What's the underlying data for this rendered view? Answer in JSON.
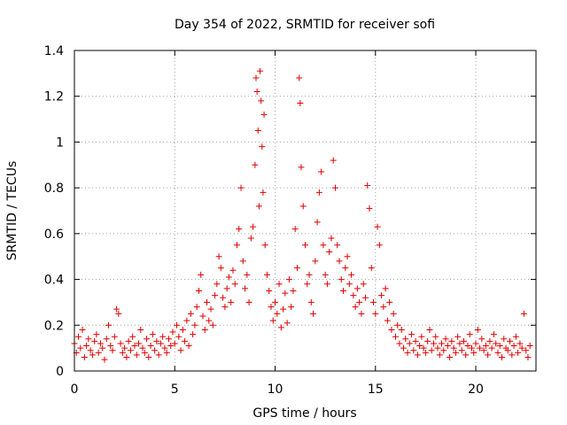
{
  "chart_data": {
    "type": "scatter",
    "title": "Day 354 of 2022, SRMTID for receiver sofi",
    "xlabel": "GPS time / hours",
    "ylabel": "SRMTID / TECUs",
    "xlim": [
      0,
      23
    ],
    "ylim": [
      0,
      1.4
    ],
    "xticks": [
      0,
      5,
      10,
      15,
      20
    ],
    "yticks": [
      0,
      0.2,
      0.4,
      0.6,
      0.8,
      1,
      1.2,
      1.4
    ],
    "ytick_labels": [
      "0",
      "0.2",
      "0.4",
      "0.6",
      "0.8",
      "1",
      "1.2",
      "1.4"
    ],
    "grid": true,
    "marker": "plus",
    "series": [
      {
        "name": "SRMTID",
        "color": "#e00000",
        "points": [
          [
            0.0,
            0.12
          ],
          [
            0.1,
            0.08
          ],
          [
            0.2,
            0.15
          ],
          [
            0.3,
            0.1
          ],
          [
            0.4,
            0.18
          ],
          [
            0.5,
            0.06
          ],
          [
            0.6,
            0.11
          ],
          [
            0.7,
            0.14
          ],
          [
            0.8,
            0.09
          ],
          [
            0.9,
            0.07
          ],
          [
            1.0,
            0.13
          ],
          [
            1.1,
            0.16
          ],
          [
            1.2,
            0.08
          ],
          [
            1.3,
            0.12
          ],
          [
            1.4,
            0.1
          ],
          [
            1.5,
            0.05
          ],
          [
            1.6,
            0.14
          ],
          [
            1.7,
            0.2
          ],
          [
            1.8,
            0.11
          ],
          [
            1.9,
            0.09
          ],
          [
            2.0,
            0.15
          ],
          [
            2.1,
            0.27
          ],
          [
            2.2,
            0.25
          ],
          [
            2.3,
            0.12
          ],
          [
            2.4,
            0.08
          ],
          [
            2.5,
            0.1
          ],
          [
            2.6,
            0.06
          ],
          [
            2.7,
            0.13
          ],
          [
            2.8,
            0.09
          ],
          [
            2.9,
            0.15
          ],
          [
            3.0,
            0.11
          ],
          [
            3.1,
            0.07
          ],
          [
            3.2,
            0.12
          ],
          [
            3.3,
            0.18
          ],
          [
            3.4,
            0.1
          ],
          [
            3.5,
            0.08
          ],
          [
            3.6,
            0.14
          ],
          [
            3.7,
            0.06
          ],
          [
            3.8,
            0.11
          ],
          [
            3.9,
            0.16
          ],
          [
            4.0,
            0.09
          ],
          [
            4.1,
            0.13
          ],
          [
            4.2,
            0.07
          ],
          [
            4.3,
            0.12
          ],
          [
            4.4,
            0.15
          ],
          [
            4.5,
            0.1
          ],
          [
            4.6,
            0.08
          ],
          [
            4.7,
            0.14
          ],
          [
            4.8,
            0.11
          ],
          [
            4.9,
            0.17
          ],
          [
            5.0,
            0.12
          ],
          [
            5.1,
            0.2
          ],
          [
            5.2,
            0.15
          ],
          [
            5.3,
            0.09
          ],
          [
            5.4,
            0.18
          ],
          [
            5.5,
            0.13
          ],
          [
            5.6,
            0.22
          ],
          [
            5.7,
            0.11
          ],
          [
            5.8,
            0.25
          ],
          [
            5.9,
            0.16
          ],
          [
            6.0,
            0.2
          ],
          [
            6.1,
            0.28
          ],
          [
            6.2,
            0.35
          ],
          [
            6.3,
            0.42
          ],
          [
            6.4,
            0.24
          ],
          [
            6.5,
            0.18
          ],
          [
            6.6,
            0.3
          ],
          [
            6.7,
            0.22
          ],
          [
            6.8,
            0.27
          ],
          [
            6.9,
            0.2
          ],
          [
            7.0,
            0.33
          ],
          [
            7.1,
            0.38
          ],
          [
            7.2,
            0.5
          ],
          [
            7.3,
            0.45
          ],
          [
            7.4,
            0.32
          ],
          [
            7.5,
            0.28
          ],
          [
            7.6,
            0.36
          ],
          [
            7.7,
            0.41
          ],
          [
            7.8,
            0.3
          ],
          [
            7.9,
            0.44
          ],
          [
            8.0,
            0.38
          ],
          [
            8.1,
            0.55
          ],
          [
            8.2,
            0.62
          ],
          [
            8.3,
            0.8
          ],
          [
            8.4,
            0.48
          ],
          [
            8.5,
            0.36
          ],
          [
            8.6,
            0.42
          ],
          [
            8.7,
            0.3
          ],
          [
            8.8,
            0.58
          ],
          [
            8.9,
            0.63
          ],
          [
            9.0,
            0.9
          ],
          [
            9.05,
            1.28
          ],
          [
            9.1,
            1.22
          ],
          [
            9.15,
            1.05
          ],
          [
            9.2,
            0.72
          ],
          [
            9.25,
            1.31
          ],
          [
            9.3,
            1.18
          ],
          [
            9.35,
            0.98
          ],
          [
            9.4,
            0.78
          ],
          [
            9.45,
            1.12
          ],
          [
            9.5,
            0.55
          ],
          [
            9.6,
            0.42
          ],
          [
            9.7,
            0.35
          ],
          [
            9.8,
            0.28
          ],
          [
            9.9,
            0.22
          ],
          [
            10.0,
            0.3
          ],
          [
            10.1,
            0.25
          ],
          [
            10.2,
            0.38
          ],
          [
            10.3,
            0.19
          ],
          [
            10.4,
            0.27
          ],
          [
            10.5,
            0.34
          ],
          [
            10.6,
            0.21
          ],
          [
            10.7,
            0.4
          ],
          [
            10.8,
            0.28
          ],
          [
            10.9,
            0.35
          ],
          [
            11.0,
            0.62
          ],
          [
            11.1,
            0.45
          ],
          [
            11.2,
            1.28
          ],
          [
            11.25,
            1.17
          ],
          [
            11.3,
            0.89
          ],
          [
            11.4,
            0.72
          ],
          [
            11.5,
            0.55
          ],
          [
            11.6,
            0.38
          ],
          [
            11.7,
            0.42
          ],
          [
            11.8,
            0.3
          ],
          [
            11.9,
            0.25
          ],
          [
            12.0,
            0.48
          ],
          [
            12.1,
            0.65
          ],
          [
            12.2,
            0.78
          ],
          [
            12.3,
            0.87
          ],
          [
            12.4,
            0.55
          ],
          [
            12.5,
            0.42
          ],
          [
            12.6,
            0.38
          ],
          [
            12.7,
            0.52
          ],
          [
            12.8,
            0.58
          ],
          [
            12.9,
            0.92
          ],
          [
            13.0,
            0.8
          ],
          [
            13.1,
            0.55
          ],
          [
            13.2,
            0.48
          ],
          [
            13.3,
            0.4
          ],
          [
            13.4,
            0.35
          ],
          [
            13.5,
            0.45
          ],
          [
            13.6,
            0.5
          ],
          [
            13.7,
            0.38
          ],
          [
            13.8,
            0.42
          ],
          [
            13.9,
            0.33
          ],
          [
            14.0,
            0.28
          ],
          [
            14.1,
            0.36
          ],
          [
            14.2,
            0.3
          ],
          [
            14.3,
            0.25
          ],
          [
            14.4,
            0.38
          ],
          [
            14.5,
            0.32
          ],
          [
            14.6,
            0.81
          ],
          [
            14.7,
            0.71
          ],
          [
            14.8,
            0.45
          ],
          [
            14.9,
            0.3
          ],
          [
            15.0,
            0.25
          ],
          [
            15.1,
            0.63
          ],
          [
            15.2,
            0.55
          ],
          [
            15.3,
            0.33
          ],
          [
            15.4,
            0.28
          ],
          [
            15.5,
            0.36
          ],
          [
            15.6,
            0.22
          ],
          [
            15.7,
            0.3
          ],
          [
            15.8,
            0.18
          ],
          [
            15.9,
            0.25
          ],
          [
            16.0,
            0.15
          ],
          [
            16.1,
            0.2
          ],
          [
            16.2,
            0.12
          ],
          [
            16.3,
            0.18
          ],
          [
            16.4,
            0.1
          ],
          [
            16.5,
            0.14
          ],
          [
            16.6,
            0.08
          ],
          [
            16.7,
            0.12
          ],
          [
            16.8,
            0.16
          ],
          [
            16.9,
            0.09
          ],
          [
            17.0,
            0.13
          ],
          [
            17.1,
            0.07
          ],
          [
            17.2,
            0.11
          ],
          [
            17.3,
            0.15
          ],
          [
            17.4,
            0.1
          ],
          [
            17.5,
            0.08
          ],
          [
            17.6,
            0.13
          ],
          [
            17.7,
            0.18
          ],
          [
            17.8,
            0.09
          ],
          [
            17.9,
            0.12
          ],
          [
            18.0,
            0.15
          ],
          [
            18.1,
            0.1
          ],
          [
            18.2,
            0.07
          ],
          [
            18.3,
            0.12
          ],
          [
            18.4,
            0.09
          ],
          [
            18.5,
            0.14
          ],
          [
            18.6,
            0.11
          ],
          [
            18.7,
            0.06
          ],
          [
            18.8,
            0.13
          ],
          [
            18.9,
            0.1
          ],
          [
            19.0,
            0.08
          ],
          [
            19.1,
            0.15
          ],
          [
            19.2,
            0.12
          ],
          [
            19.3,
            0.09
          ],
          [
            19.4,
            0.13
          ],
          [
            19.5,
            0.07
          ],
          [
            19.6,
            0.11
          ],
          [
            19.7,
            0.16
          ],
          [
            19.8,
            0.1
          ],
          [
            19.9,
            0.08
          ],
          [
            20.0,
            0.12
          ],
          [
            20.1,
            0.18
          ],
          [
            20.2,
            0.1
          ],
          [
            20.3,
            0.14
          ],
          [
            20.4,
            0.09
          ],
          [
            20.5,
            0.11
          ],
          [
            20.6,
            0.07
          ],
          [
            20.7,
            0.13
          ],
          [
            20.8,
            0.1
          ],
          [
            20.9,
            0.16
          ],
          [
            21.0,
            0.12
          ],
          [
            21.1,
            0.08
          ],
          [
            21.2,
            0.11
          ],
          [
            21.3,
            0.06
          ],
          [
            21.4,
            0.14
          ],
          [
            21.5,
            0.1
          ],
          [
            21.6,
            0.09
          ],
          [
            21.7,
            0.13
          ],
          [
            21.8,
            0.07
          ],
          [
            21.9,
            0.11
          ],
          [
            22.0,
            0.15
          ],
          [
            22.1,
            0.08
          ],
          [
            22.2,
            0.12
          ],
          [
            22.3,
            0.1
          ],
          [
            22.4,
            0.25
          ],
          [
            22.5,
            0.09
          ],
          [
            22.6,
            0.06
          ],
          [
            22.7,
            0.11
          ]
        ]
      }
    ]
  }
}
